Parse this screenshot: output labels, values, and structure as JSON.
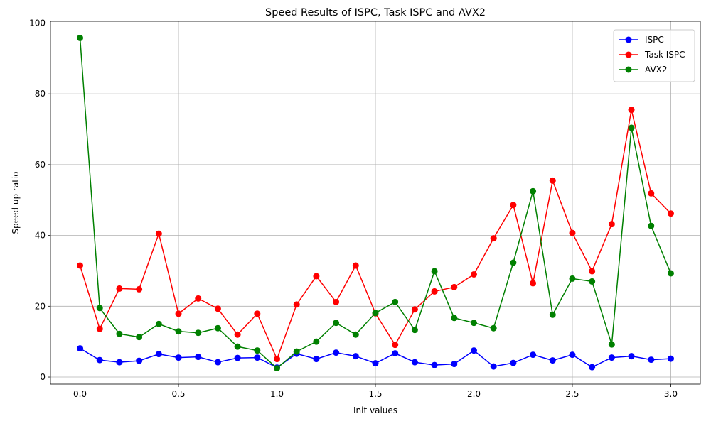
{
  "chart_data": {
    "type": "line",
    "title": "Speed Results of ISPC, Task ISPC and AVX2",
    "xlabel": "Init values",
    "ylabel": "Speed up ratio",
    "xlim": [
      -0.15,
      3.15
    ],
    "ylim": [
      -2,
      100.5
    ],
    "xticks": [
      0.0,
      0.5,
      1.0,
      1.5,
      2.0,
      2.5,
      3.0
    ],
    "xtick_labels": [
      "0.0",
      "0.5",
      "1.0",
      "1.5",
      "2.0",
      "2.5",
      "3.0"
    ],
    "yticks": [
      0,
      20,
      40,
      60,
      80,
      100
    ],
    "ytick_labels": [
      "0",
      "20",
      "40",
      "60",
      "80",
      "100"
    ],
    "grid": true,
    "legend_position": "top-right",
    "x": [
      0.0,
      0.1,
      0.2,
      0.3,
      0.4,
      0.5,
      0.6,
      0.7,
      0.8,
      0.9,
      1.0,
      1.1,
      1.2,
      1.3,
      1.4,
      1.5,
      1.6,
      1.7,
      1.8,
      1.9,
      2.0,
      2.1,
      2.2,
      2.3,
      2.4,
      2.5,
      2.6,
      2.7,
      2.8,
      2.9,
      3.0
    ],
    "series": [
      {
        "name": "ISPC",
        "color": "#0000ff",
        "values": [
          8.1,
          4.8,
          4.2,
          4.6,
          6.5,
          5.5,
          5.7,
          4.2,
          5.4,
          5.5,
          2.7,
          6.6,
          5.1,
          6.9,
          5.9,
          3.9,
          6.7,
          4.2,
          3.4,
          3.7,
          7.5,
          3.0,
          4.0,
          6.3,
          4.7,
          6.3,
          2.8,
          5.5,
          5.9,
          4.9,
          5.2
        ]
      },
      {
        "name": "Task ISPC",
        "color": "#ff0000",
        "values": [
          31.5,
          13.6,
          25.0,
          24.8,
          40.5,
          17.9,
          22.2,
          19.3,
          12.0,
          17.9,
          5.1,
          20.5,
          28.5,
          21.2,
          31.5,
          18.0,
          9.1,
          19.1,
          24.2,
          25.4,
          29.0,
          39.2,
          48.6,
          26.5,
          55.5,
          40.7,
          29.9,
          43.2,
          75.5,
          51.9,
          46.2
        ]
      },
      {
        "name": "AVX2",
        "color": "#008000",
        "values": [
          95.8,
          19.5,
          12.2,
          11.3,
          15.0,
          12.9,
          12.5,
          13.8,
          8.6,
          7.5,
          2.5,
          7.2,
          10.0,
          15.3,
          12.0,
          18.1,
          21.2,
          13.3,
          29.9,
          16.7,
          15.3,
          13.8,
          32.3,
          52.5,
          17.6,
          27.8,
          27.0,
          9.2,
          70.4,
          42.7,
          29.3
        ]
      }
    ]
  }
}
